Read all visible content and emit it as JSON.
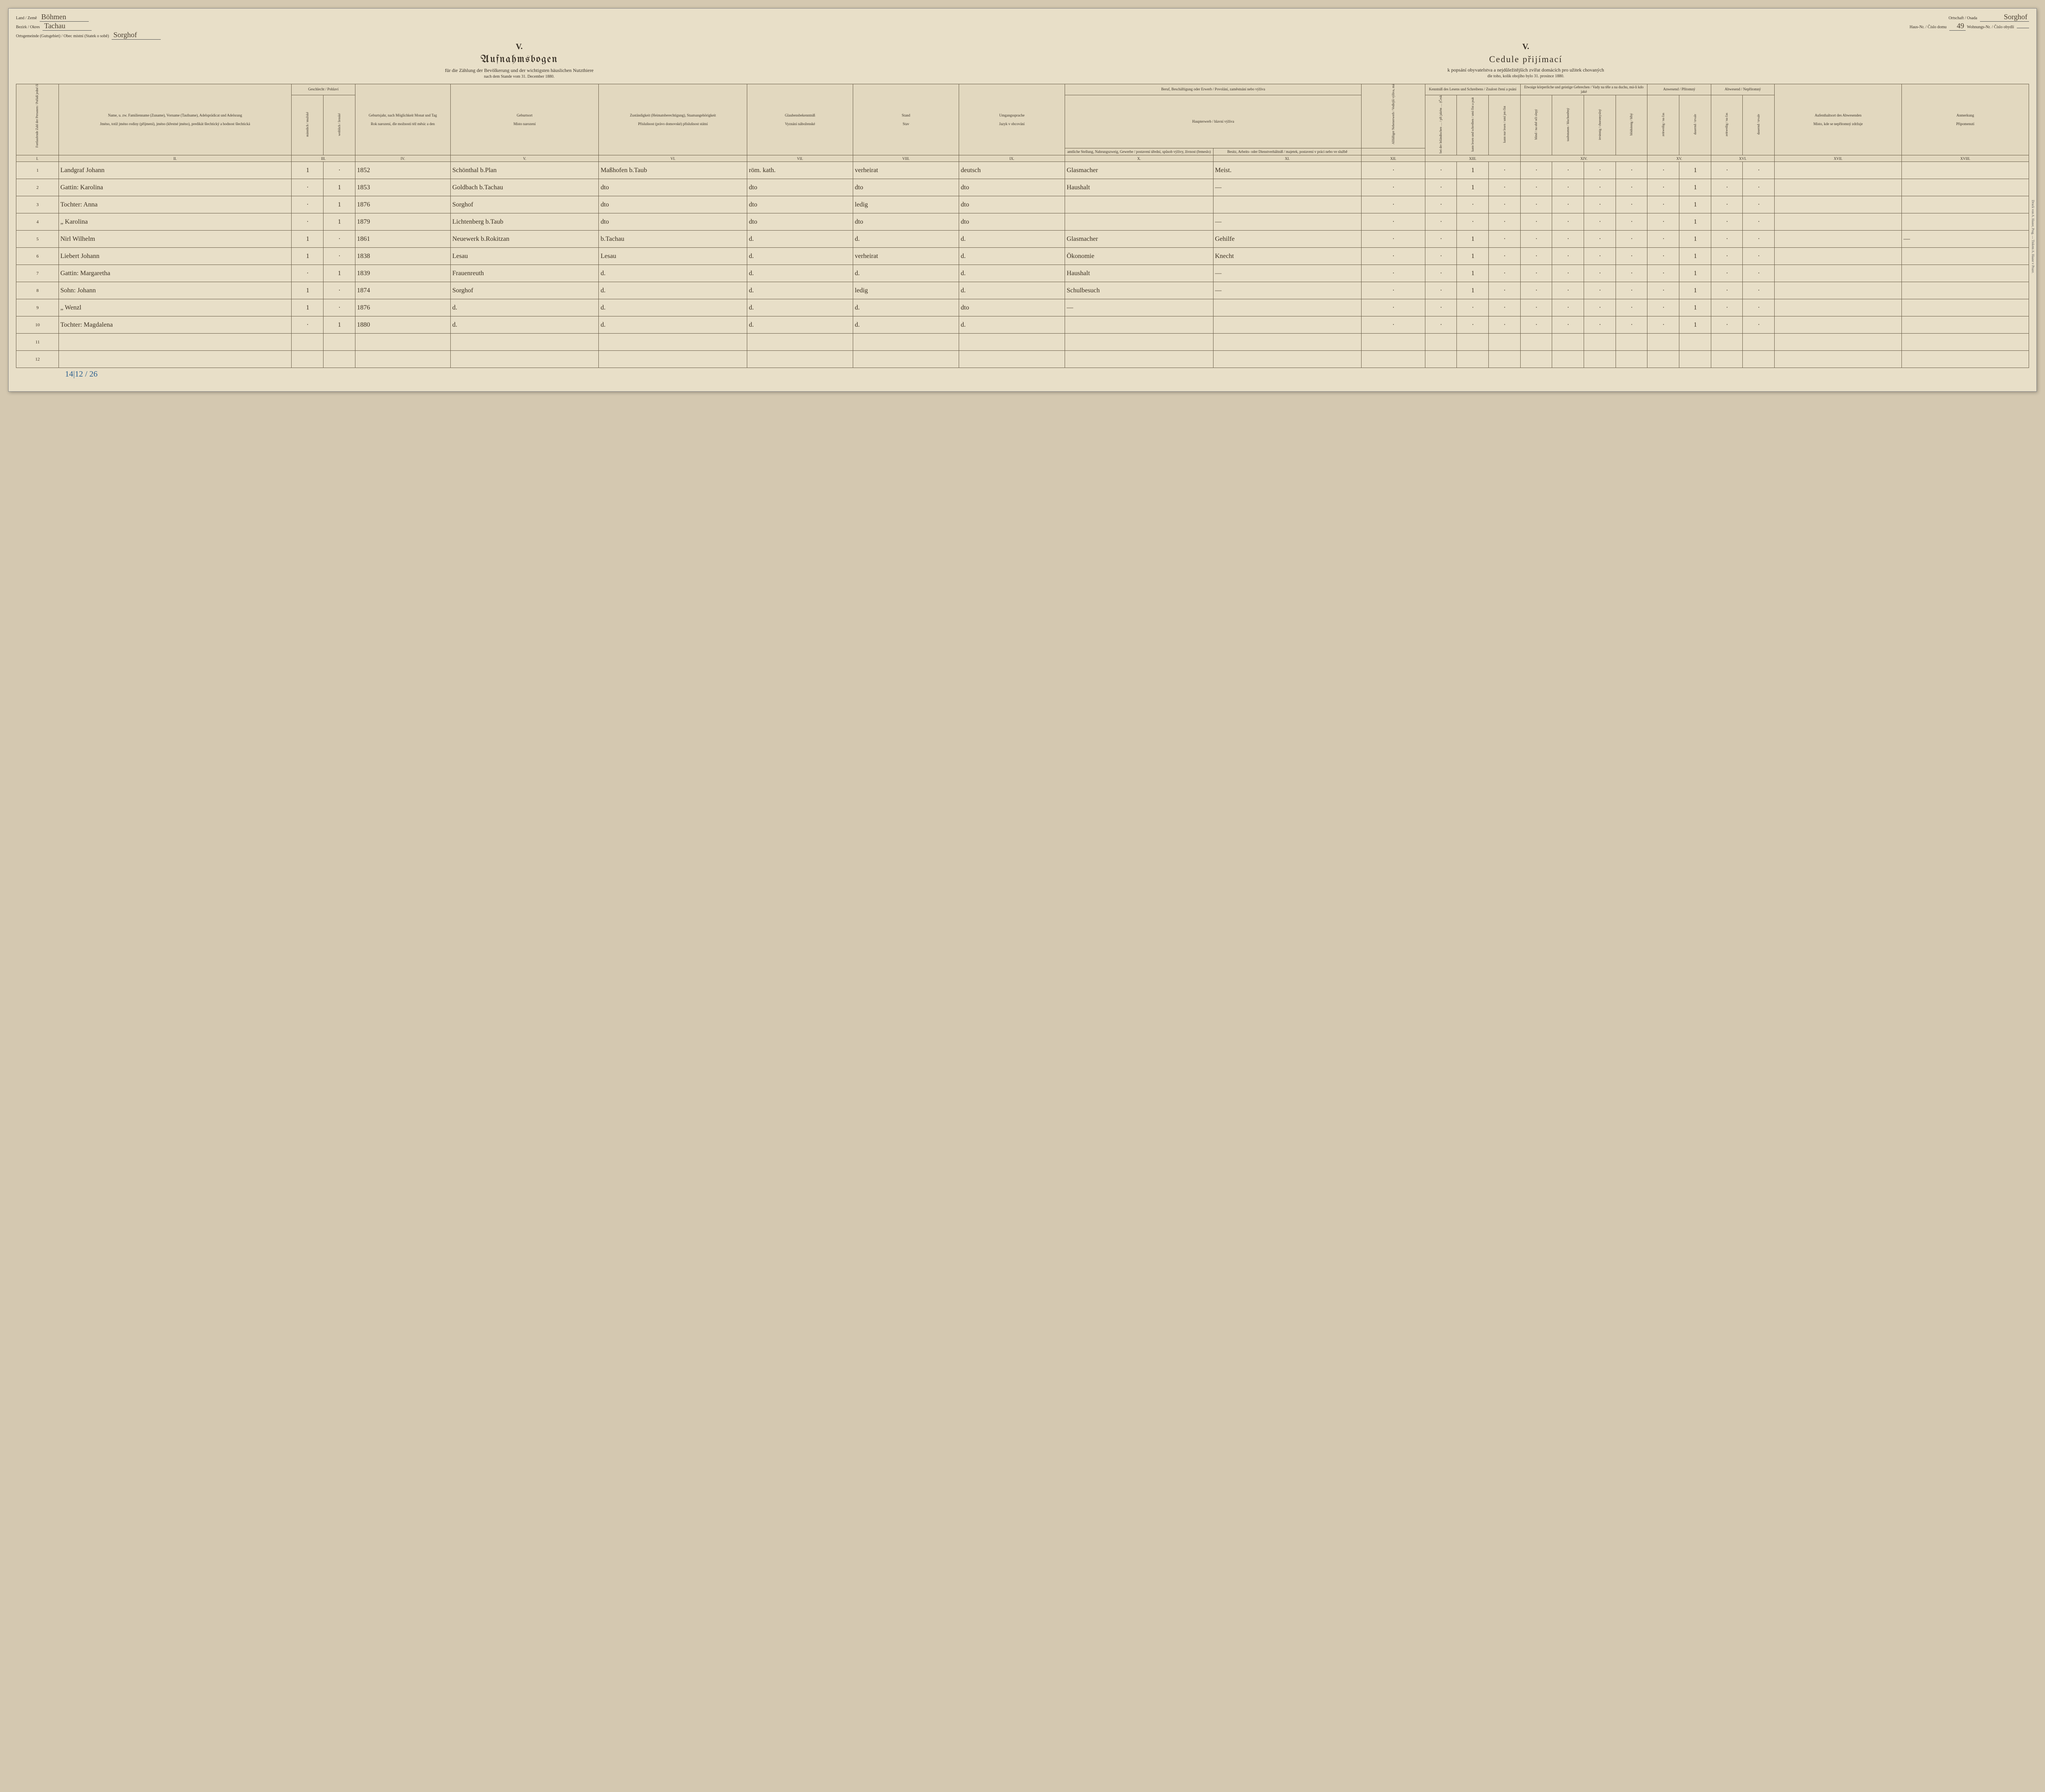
{
  "header": {
    "land_label": "Land / Země",
    "land_value": "Böhmen",
    "bezirk_label": "Bezirk / Okres",
    "bezirk_value": "Tachau",
    "gemeinde_label": "Ortsgemeinde (Gutsgebiet) / Obec místní (Statek o sobě)",
    "gemeinde_value": "Sorghof",
    "ortschaft_label": "Ortschaft / Osada",
    "ortschaft_value": "Sorghof",
    "hausnr_label": "Haus-Nr. / Číslo domu",
    "hausnr_value": "49",
    "wohnnr_label": "Wohnungs-Nr. / Číslo obydlí",
    "wohnnr_value": ""
  },
  "titles": {
    "roman": "V.",
    "de_title": "Aufnahmsbogen",
    "de_sub1": "für die Zählung der Bevölkerung und der wichtigsten häuslichen Nutzthiere",
    "de_sub2": "nach dem Stande vom 31. December 1880.",
    "cz_title": "Cedule přijímací",
    "cz_sub1": "k popsání obyvatelstva a nejdůležitějších zvířat domácích pro užitek chovaných",
    "cz_sub2": "dle toho, kolik obojího bylo 31. prosince 1880."
  },
  "colheads": {
    "seq": "Fortlaufende Zahl der Personen / Pořádí jedné číslo osob",
    "name_top": "Name, u. zw. Familienname (Zuname), Vorname (Taufname), Adelsprädicat und Adelsrang",
    "name_bot": "Jméno, totiž jméno rodiny (příjmení), jméno (křestné jméno), predikát šlechtický a hodnost šlechtická",
    "sex": "Geschlecht / Pohlaví",
    "sex_m": "männlich / mužské",
    "sex_w": "weiblich / ženské",
    "year_top": "Geburtsjahr, nach Möglichkeit Monat und Tag",
    "year_bot": "Rok narození, dle možnosti též měsíc a den",
    "place_top": "Geburtsort",
    "place_bot": "Místo narození",
    "heimat_top": "Zuständigkeit (Heimatsberechtigung), Staatsangehörigkeit",
    "heimat_bot": "Příslušnost (právo domovské) příslušnost státní",
    "relig_top": "Glaubensbekenntniß",
    "relig_bot": "Vyznání náboženské",
    "stand_top": "Stand",
    "stand_bot": "Stav",
    "lang_top": "Umgangssprache",
    "lang_bot": "Jazyk v obcování",
    "beruf_top": "Beruf, Beschäftigung oder Erwerb / Povolání, zaměstnání nebo výživa",
    "beruf_haupt": "Haupterwerb / hlavní výživa",
    "beruf_a": "amtliche Stellung, Nahrungszweig, Gewerbe / postavení úřední, spůsob výživy, živnost (řemeslo)",
    "beruf_b": "Besitz, Arbeits- oder Dienstverhältniß / majetek, postavení v práci nebo ve službě",
    "neben": "Allfälliger Nebenerwerb / Vedlejší výživa, má-li kdo jakou",
    "lesen": "Kenntniß des Lesens und Schreibens / Znalost čtení a psání",
    "lesen_a": "bei der Inländischen … / při jakém … (Česká)",
    "lesen_b": "kann lesen und schreíben / umí číst a psát",
    "lesen_c": "kann nur lesen / umí jen číst",
    "gebr": "Etwaige körperliche und geistige Gebrechen / Vady na těle a na duchu, má-li kdo jaké",
    "gebr_a": "blind / na obě oči slepý",
    "gebr_b": "taubstumm / hluchoněmý",
    "gebr_c": "irrsinnig / choromyslný",
    "gebr_d": "blödsinnig / blbý",
    "anw": "Anwesend / Přítomný",
    "anw_a": "zeitweilig / na čas",
    "anw_b": "dauernd / trvale",
    "abw": "Abwesend / Nepřítomný",
    "abw_a": "zeitweilig / na čas",
    "abw_b": "dauernd / trvale",
    "where_top": "Aufenthaltsort des Abwesenden",
    "where_bot": "Místo, kde se nepřítomný zdržuje",
    "anm_top": "Anmerkung",
    "anm_bot": "Připomenutí"
  },
  "colnums": [
    "I.",
    "II.",
    "III.",
    "IV.",
    "V.",
    "VI.",
    "VII.",
    "VIII.",
    "IX.",
    "X.",
    "XI.",
    "XII.",
    "XIII.",
    "XIV.",
    "XV.",
    "XVI.",
    "XVII.",
    "XVIII."
  ],
  "rows": [
    {
      "n": "1",
      "name": "Landgraf Johann",
      "m": "1",
      "w": "·",
      "year": "1852",
      "place": "Schönthal b.Plan",
      "heimat": "Maßhofen b.Taub",
      "relig": "röm. kath.",
      "stand": "verheirat",
      "lang": "deutsch",
      "occ1": "Glasmacher",
      "occ2": "Meist.",
      "neb": "·",
      "lit1": "·",
      "lit2": "1",
      "lit3": "·",
      "d1": "·",
      "d2": "·",
      "d3": "·",
      "d4": "·",
      "p1": "·",
      "p2": "1",
      "a1": "·",
      "a2": "·",
      "where": "",
      "anm": ""
    },
    {
      "n": "2",
      "name": "Gattin: Karolina",
      "m": "·",
      "w": "1",
      "year": "1853",
      "place": "Goldbach b.Tachau",
      "heimat": "dto",
      "relig": "dto",
      "stand": "dto",
      "lang": "dto",
      "occ1": "Haushalt",
      "occ2": "—",
      "neb": "·",
      "lit1": "·",
      "lit2": "1",
      "lit3": "·",
      "d1": "·",
      "d2": "·",
      "d3": "·",
      "d4": "·",
      "p1": "·",
      "p2": "1",
      "a1": "·",
      "a2": "·",
      "where": "",
      "anm": ""
    },
    {
      "n": "3",
      "name": "Tochter: Anna",
      "m": "·",
      "w": "1",
      "year": "1876",
      "place": "Sorghof",
      "heimat": "dto",
      "relig": "dto",
      "stand": "ledig",
      "lang": "dto",
      "occ1": "",
      "occ2": "",
      "neb": "·",
      "lit1": "·",
      "lit2": "·",
      "lit3": "·",
      "d1": "·",
      "d2": "·",
      "d3": "·",
      "d4": "·",
      "p1": "·",
      "p2": "1",
      "a1": "·",
      "a2": "·",
      "where": "",
      "anm": ""
    },
    {
      "n": "4",
      "name": "„ Karolina",
      "m": "·",
      "w": "1",
      "year": "1879",
      "place": "Lichtenberg b.Taub",
      "heimat": "dto",
      "relig": "dto",
      "stand": "dto",
      "lang": "dto",
      "occ1": "",
      "occ2": "—",
      "neb": "·",
      "lit1": "·",
      "lit2": "·",
      "lit3": "·",
      "d1": "·",
      "d2": "·",
      "d3": "·",
      "d4": "·",
      "p1": "·",
      "p2": "1",
      "a1": "·",
      "a2": "·",
      "where": "",
      "anm": ""
    },
    {
      "n": "5",
      "name": "Nirl Wilhelm",
      "m": "1",
      "w": "·",
      "year": "1861",
      "place": "Neuewerk b.Rokitzan",
      "heimat": "b.Tachau",
      "relig": "d.",
      "stand": "d.",
      "lang": "d.",
      "occ1": "Glasmacher",
      "occ2": "Gehilfe",
      "neb": "·",
      "lit1": "·",
      "lit2": "1",
      "lit3": "·",
      "d1": "·",
      "d2": "·",
      "d3": "·",
      "d4": "·",
      "p1": "·",
      "p2": "1",
      "a1": "·",
      "a2": "·",
      "where": "",
      "anm": "—"
    },
    {
      "n": "6",
      "name": "Liebert Johann",
      "m": "1",
      "w": "·",
      "year": "1838",
      "place": "Lesau",
      "heimat": "Lesau",
      "relig": "d.",
      "stand": "verheirat",
      "lang": "d.",
      "occ1": "Ökonomie",
      "occ2": "Knecht",
      "neb": "·",
      "lit1": "·",
      "lit2": "1",
      "lit3": "·",
      "d1": "·",
      "d2": "·",
      "d3": "·",
      "d4": "·",
      "p1": "·",
      "p2": "1",
      "a1": "·",
      "a2": "·",
      "where": "",
      "anm": ""
    },
    {
      "n": "7",
      "name": "Gattin: Margaretha",
      "m": "·",
      "w": "1",
      "year": "1839",
      "place": "Frauenreuth",
      "heimat": "d.",
      "relig": "d.",
      "stand": "d.",
      "lang": "d.",
      "occ1": "Haushalt",
      "occ2": "—",
      "neb": "·",
      "lit1": "·",
      "lit2": "1",
      "lit3": "·",
      "d1": "·",
      "d2": "·",
      "d3": "·",
      "d4": "·",
      "p1": "·",
      "p2": "1",
      "a1": "·",
      "a2": "·",
      "where": "",
      "anm": ""
    },
    {
      "n": "8",
      "name": "Sohn: Johann",
      "m": "1",
      "w": "·",
      "year": "1874",
      "place": "Sorghof",
      "heimat": "d.",
      "relig": "d.",
      "stand": "ledig",
      "lang": "d.",
      "occ1": "Schulbesuch",
      "occ2": "—",
      "neb": "·",
      "lit1": "·",
      "lit2": "1",
      "lit3": "·",
      "d1": "·",
      "d2": "·",
      "d3": "·",
      "d4": "·",
      "p1": "·",
      "p2": "1",
      "a1": "·",
      "a2": "·",
      "where": "",
      "anm": ""
    },
    {
      "n": "9",
      "name": "„ Wenzl",
      "m": "1",
      "w": "·",
      "year": "1876",
      "place": "d.",
      "heimat": "d.",
      "relig": "d.",
      "stand": "d.",
      "lang": "dto",
      "occ1": "—",
      "occ2": "",
      "neb": "·",
      "lit1": "·",
      "lit2": "·",
      "lit3": "·",
      "d1": "·",
      "d2": "·",
      "d3": "·",
      "d4": "·",
      "p1": "·",
      "p2": "1",
      "a1": "·",
      "a2": "·",
      "where": "",
      "anm": ""
    },
    {
      "n": "10",
      "name": "Tochter: Magdalena",
      "m": "·",
      "w": "1",
      "year": "1880",
      "place": "d.",
      "heimat": "d.",
      "relig": "d.",
      "stand": "d.",
      "lang": "d.",
      "occ1": "",
      "occ2": "",
      "neb": "·",
      "lit1": "·",
      "lit2": "·",
      "lit3": "·",
      "d1": "·",
      "d2": "·",
      "d3": "·",
      "d4": "·",
      "p1": "·",
      "p2": "1",
      "a1": "·",
      "a2": "·",
      "where": "",
      "anm": ""
    },
    {
      "n": "11",
      "name": "",
      "m": "",
      "w": "",
      "year": "",
      "place": "",
      "heimat": "",
      "relig": "",
      "stand": "",
      "lang": "",
      "occ1": "",
      "occ2": "",
      "neb": "",
      "lit1": "",
      "lit2": "",
      "lit3": "",
      "d1": "",
      "d2": "",
      "d3": "",
      "d4": "",
      "p1": "",
      "p2": "",
      "a1": "",
      "a2": "",
      "where": "",
      "anm": ""
    },
    {
      "n": "12",
      "name": "",
      "m": "",
      "w": "",
      "year": "",
      "place": "",
      "heimat": "",
      "relig": "",
      "stand": "",
      "lang": "",
      "occ1": "",
      "occ2": "",
      "neb": "",
      "lit1": "",
      "lit2": "",
      "lit3": "",
      "d1": "",
      "d2": "",
      "d3": "",
      "d4": "",
      "p1": "",
      "p2": "",
      "a1": "",
      "a2": "",
      "where": "",
      "anm": ""
    }
  ],
  "footnote": "14|12 / 26",
  "side_print": "Druck von A. Haase, Prag. — Tiskem A. Haase v Praze."
}
